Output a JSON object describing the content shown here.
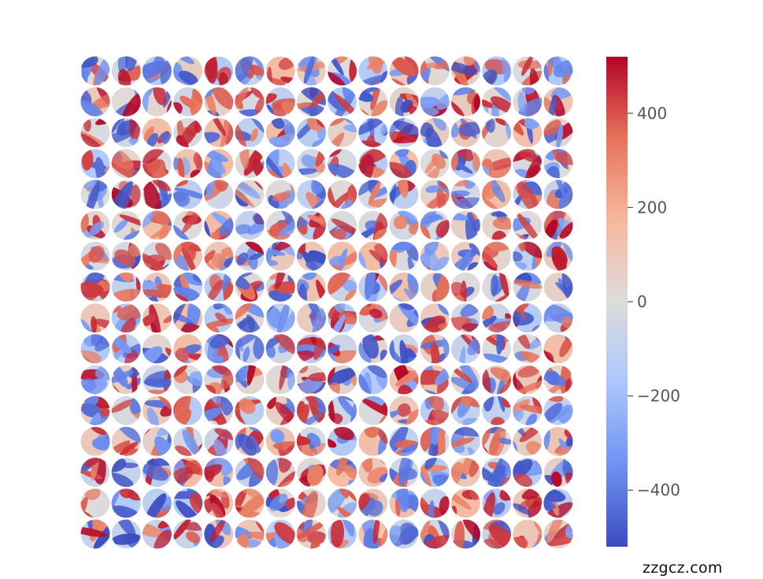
{
  "chart_data": {
    "type": "heatmap",
    "title": "",
    "xlabel": "",
    "ylabel": "",
    "grid": {
      "rows": 16,
      "cols": 16,
      "cell_shape": "circle",
      "axes_visible": false
    },
    "colormap": "coolwarm",
    "colormap_stops": [
      "#3b4cc0",
      "#6f92f3",
      "#aac7fd",
      "#dddcdc",
      "#f7b89c",
      "#e7745b",
      "#b40426"
    ],
    "value_range": [
      -520,
      520
    ],
    "colorbar": {
      "placement": "right",
      "ticks": [
        {
          "value": 400,
          "label": "400"
        },
        {
          "value": 200,
          "label": "200"
        },
        {
          "value": 0,
          "label": "0"
        },
        {
          "value": -200,
          "label": "−200"
        },
        {
          "value": -400,
          "label": "−400"
        }
      ]
    }
  },
  "watermark": "zzgcz.com"
}
